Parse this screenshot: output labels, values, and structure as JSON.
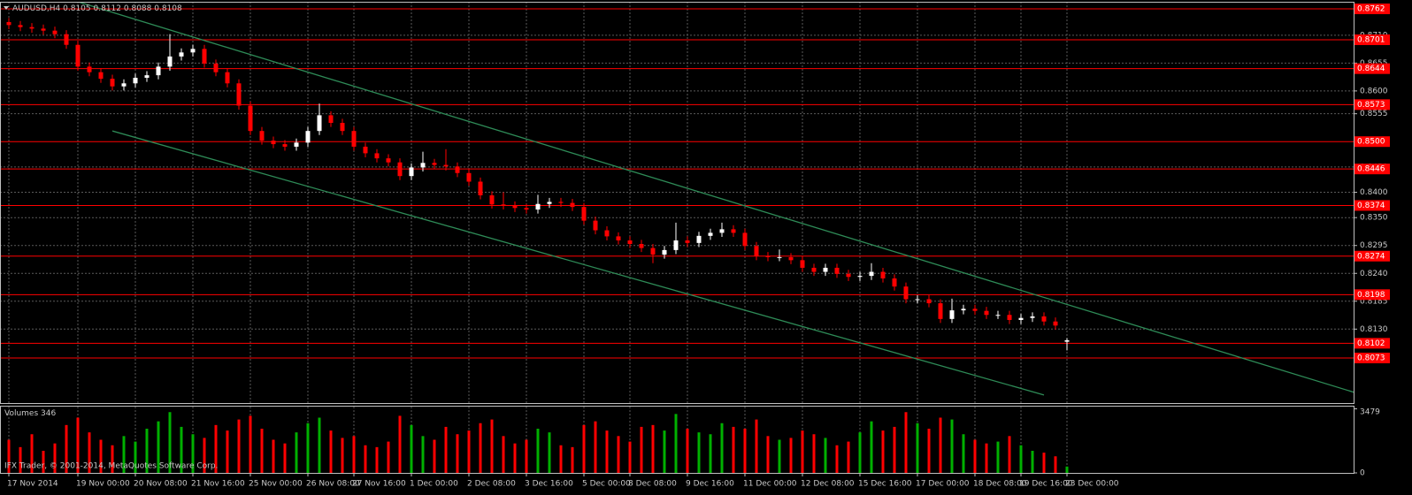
{
  "chart_data": {
    "type": "candlestick",
    "title": "AUDUSD,H4",
    "categories": [
      "17 Nov 2014",
      null,
      null,
      null,
      null,
      null,
      "19 Nov 00:00",
      null,
      null,
      null,
      null,
      "20 Nov 08:00",
      null,
      null,
      null,
      null,
      "21 Nov 16:00",
      null,
      null,
      null,
      null,
      "25 Nov 00:00",
      null,
      null,
      null,
      null,
      "26 Nov 08:00",
      null,
      null,
      null,
      "27 Nov 16:00",
      null,
      null,
      null,
      null,
      "1 Dec 00:00",
      null,
      null,
      null,
      null,
      "2 Dec 08:00",
      null,
      null,
      null,
      null,
      "3 Dec 16:00",
      null,
      null,
      null,
      null,
      "5 Dec 00:00",
      null,
      null,
      null,
      "8 Dec 08:00",
      null,
      null,
      null,
      null,
      "9 Dec 16:00",
      null,
      null,
      null,
      null,
      "11 Dec 00:00",
      null,
      null,
      null,
      null,
      "12 Dec 08:00",
      null,
      null,
      null,
      null,
      "15 Dec 16:00",
      null,
      null,
      null,
      null,
      "17 Dec 00:00",
      null,
      null,
      null,
      null,
      "18 Dec 08:00",
      null,
      null,
      null,
      "19 Dec 16:00",
      null,
      null,
      null,
      "23 Dec 00:00"
    ],
    "open": [
      0.8736,
      0.873,
      0.8726,
      0.8723,
      0.8719,
      0.8712,
      0.8691,
      0.8648,
      0.8637,
      0.8624,
      0.8609,
      0.8615,
      0.8626,
      0.8631,
      0.8648,
      0.8668,
      0.8676,
      0.8683,
      0.8654,
      0.8637,
      0.8615,
      0.8571,
      0.8521,
      0.8502,
      0.8495,
      0.849,
      0.8498,
      0.8521,
      0.8552,
      0.8537,
      0.8521,
      0.849,
      0.8477,
      0.8467,
      0.8459,
      0.8432,
      0.8449,
      0.8458,
      0.8454,
      0.8451,
      0.8438,
      0.8421,
      0.8394,
      0.8376,
      0.8374,
      0.8369,
      0.8366,
      0.8377,
      0.8381,
      0.8379,
      0.8371,
      0.8344,
      0.8325,
      0.8313,
      0.8305,
      0.8298,
      0.829,
      0.8277,
      0.8286,
      0.8305,
      0.83,
      0.8314,
      0.832,
      0.8327,
      0.832,
      0.8294,
      0.8274,
      0.8272,
      0.8272,
      0.8266,
      0.8251,
      0.8243,
      0.8251,
      0.8239,
      0.8233,
      0.8235,
      0.8243,
      0.823,
      0.8214,
      0.8189,
      0.8189,
      0.8181,
      0.815,
      0.8167,
      0.817,
      0.8166,
      0.8158,
      0.8158,
      0.8148,
      0.8152,
      0.8155,
      0.8145,
      0.8105
    ],
    "high": [
      0.8744,
      0.8738,
      0.8734,
      0.8731,
      0.8727,
      0.872,
      0.8699,
      0.8656,
      0.8645,
      0.8632,
      0.8623,
      0.8634,
      0.8639,
      0.8656,
      0.8712,
      0.8684,
      0.8691,
      0.8691,
      0.8662,
      0.8645,
      0.8623,
      0.8579,
      0.8529,
      0.851,
      0.8503,
      0.8506,
      0.8529,
      0.8575,
      0.856,
      0.8545,
      0.8529,
      0.8498,
      0.8485,
      0.8475,
      0.8467,
      0.8457,
      0.848,
      0.8466,
      0.8485,
      0.8459,
      0.8446,
      0.8429,
      0.8402,
      0.84,
      0.8382,
      0.8377,
      0.8395,
      0.8389,
      0.8389,
      0.8387,
      0.8379,
      0.8352,
      0.8333,
      0.8321,
      0.8313,
      0.8306,
      0.8298,
      0.8294,
      0.834,
      0.8313,
      0.8322,
      0.8328,
      0.834,
      0.8335,
      0.8328,
      0.8302,
      0.8282,
      0.8287,
      0.828,
      0.8274,
      0.8259,
      0.8259,
      0.8259,
      0.8247,
      0.8243,
      0.826,
      0.8251,
      0.8238,
      0.8222,
      0.8197,
      0.8197,
      0.8189,
      0.819,
      0.8178,
      0.8178,
      0.8174,
      0.8166,
      0.8166,
      0.816,
      0.8163,
      0.8163,
      0.8153,
      0.8112
    ],
    "low": [
      0.8722,
      0.8718,
      0.8715,
      0.8711,
      0.8704,
      0.8683,
      0.864,
      0.8629,
      0.8616,
      0.8601,
      0.8601,
      0.8607,
      0.8618,
      0.8623,
      0.864,
      0.866,
      0.8668,
      0.8646,
      0.8629,
      0.8607,
      0.8563,
      0.8513,
      0.8494,
      0.8487,
      0.8482,
      0.8482,
      0.849,
      0.8513,
      0.8529,
      0.8513,
      0.8482,
      0.8469,
      0.8459,
      0.8451,
      0.8424,
      0.8424,
      0.8441,
      0.8446,
      0.8443,
      0.843,
      0.8413,
      0.8386,
      0.8368,
      0.8366,
      0.8361,
      0.8358,
      0.8358,
      0.8369,
      0.8371,
      0.8363,
      0.8336,
      0.8317,
      0.8305,
      0.8297,
      0.829,
      0.8282,
      0.826,
      0.8269,
      0.8278,
      0.8292,
      0.8292,
      0.8306,
      0.8312,
      0.8312,
      0.8286,
      0.8266,
      0.8264,
      0.8264,
      0.8258,
      0.8243,
      0.8235,
      0.8235,
      0.8231,
      0.8225,
      0.8225,
      0.8227,
      0.8222,
      0.8206,
      0.8181,
      0.8181,
      0.8173,
      0.8142,
      0.8142,
      0.8159,
      0.8158,
      0.815,
      0.815,
      0.814,
      0.814,
      0.8144,
      0.8137,
      0.8129,
      0.8088
    ],
    "close": [
      0.873,
      0.8726,
      0.8723,
      0.8719,
      0.8712,
      0.8691,
      0.8648,
      0.8637,
      0.8624,
      0.8609,
      0.8615,
      0.8626,
      0.8631,
      0.8648,
      0.8668,
      0.8676,
      0.8683,
      0.8654,
      0.8637,
      0.8615,
      0.8571,
      0.8521,
      0.8502,
      0.8495,
      0.849,
      0.8498,
      0.8521,
      0.8552,
      0.8537,
      0.8521,
      0.849,
      0.8477,
      0.8467,
      0.8459,
      0.8432,
      0.8449,
      0.8458,
      0.8454,
      0.8451,
      0.8438,
      0.8421,
      0.8394,
      0.8376,
      0.8374,
      0.8369,
      0.8366,
      0.8377,
      0.8381,
      0.8379,
      0.8371,
      0.8344,
      0.8325,
      0.8313,
      0.8305,
      0.8298,
      0.829,
      0.8277,
      0.8286,
      0.8305,
      0.83,
      0.8314,
      0.832,
      0.8327,
      0.832,
      0.8294,
      0.8274,
      0.8272,
      0.8272,
      0.8266,
      0.8251,
      0.8243,
      0.8251,
      0.8239,
      0.8233,
      0.8235,
      0.8243,
      0.823,
      0.8214,
      0.8189,
      0.8189,
      0.8181,
      0.815,
      0.8167,
      0.817,
      0.8166,
      0.8158,
      0.8158,
      0.8148,
      0.8152,
      0.8155,
      0.8145,
      0.8137,
      0.8108
    ],
    "up_color": "#ffffff",
    "down_color": "#ff0000",
    "ylim": [
      0.7984,
      0.8776
    ],
    "yticks": [
      {
        "value": 0.871,
        "label": "0.8710"
      },
      0.8655,
      {
        "value": 0.86,
        "label": "0.8600"
      },
      0.8555,
      {
        "value": 0.845,
        "label": "0.8450"
      },
      {
        "value": 0.84,
        "label": "0.8400"
      },
      {
        "value": 0.835,
        "label": "0.8350"
      },
      0.8295,
      {
        "value": 0.824,
        "label": "0.8240"
      },
      0.8185,
      {
        "value": 0.813,
        "label": "0.8130"
      }
    ],
    "grid": true,
    "levels": [
      0.8762,
      0.8701,
      0.8644,
      0.8573,
      {
        "value": 0.85,
        "label": "0.8500"
      },
      0.8446,
      0.8374,
      0.8274,
      0.8198,
      0.8102,
      0.8073
    ],
    "level_color": "#ff0000",
    "channels": [
      {
        "x": [
          6,
          117
        ],
        "y": [
          0.8776,
          0.8005
        ]
      },
      {
        "x": [
          9,
          90
        ],
        "y": [
          0.8521,
          0.8
        ]
      }
    ],
    "channel_color": "#2e8b57",
    "volume": {
      "label": "Volumes",
      "values": [
        1800,
        1400,
        2100,
        1200,
        1600,
        2600,
        3000,
        2200,
        1800,
        1500,
        2000,
        1700,
        2400,
        2800,
        3300,
        2500,
        2100,
        1900,
        2600,
        2300,
        2900,
        3100,
        2400,
        1800,
        1600,
        2200,
        2700,
        3000,
        2300,
        1900,
        2000,
        1500,
        1400,
        1700,
        3100,
        2600,
        2000,
        1800,
        2500,
        2100,
        2300,
        2700,
        2900,
        2000,
        1600,
        1800,
        2400,
        2200,
        1500,
        1400,
        2600,
        2800,
        2300,
        2000,
        1700,
        2500,
        2600,
        2300,
        3200,
        2400,
        2200,
        2100,
        2700,
        2500,
        2400,
        2900,
        2000,
        1800,
        1900,
        2300,
        2100,
        1900,
        1500,
        1700,
        2200,
        2800,
        2300,
        2500,
        3300,
        2700,
        2400,
        3000,
        2900,
        2100,
        1800,
        1600,
        1700,
        2000,
        1500,
        1200,
        1100,
        900,
        346
      ],
      "ylim": [
        0,
        3600
      ],
      "yticks": [
        0,
        3479
      ],
      "up_color": "#00b000",
      "down_color": "#ff0000"
    },
    "footer": "IFX Trader, © 2001-2014, MetaQuotes Software Corp."
  }
}
